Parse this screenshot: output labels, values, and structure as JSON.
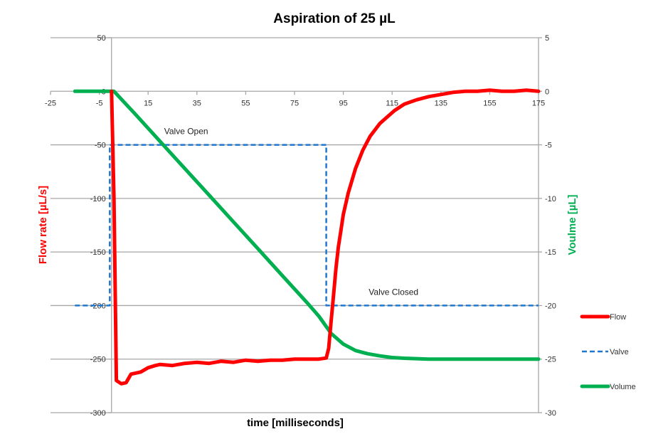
{
  "chart_data": {
    "type": "line",
    "title": "Aspiration of 25 µL",
    "xlabel": "time [milliseconds]",
    "ylabel": "Flow rate [µL/s]",
    "y2label": "Voulme [µL]",
    "xlim": [
      -25,
      175
    ],
    "ylim": [
      -300,
      50
    ],
    "y2lim": [
      -30,
      5
    ],
    "x_ticks": [
      -25,
      -5,
      15,
      35,
      55,
      75,
      95,
      115,
      135,
      155,
      175
    ],
    "y_ticks": [
      50,
      0,
      -50,
      -100,
      -150,
      -200,
      -250,
      -300
    ],
    "y2_ticks": [
      5,
      0,
      -5,
      -10,
      -15,
      -20,
      -25,
      -30
    ],
    "grid": true,
    "legend_position": "right",
    "annotations": [
      {
        "text": "Valve Open",
        "x": 30,
        "y": -40
      },
      {
        "text": "Valve Closed",
        "x": 115,
        "y": -190
      }
    ],
    "series": [
      {
        "name": "Flow",
        "axis": "left",
        "color": "#ff0000",
        "style": "solid",
        "x": [
          0,
          1,
          2,
          4,
          6,
          8,
          10,
          12,
          15,
          18,
          20,
          25,
          30,
          35,
          40,
          45,
          50,
          55,
          60,
          65,
          70,
          75,
          80,
          85,
          88,
          89,
          90,
          91,
          92,
          93,
          94,
          95,
          97,
          100,
          103,
          106,
          110,
          113,
          116,
          120,
          125,
          130,
          135,
          140,
          145,
          150,
          155,
          160,
          165,
          170,
          175
        ],
        "y": [
          0,
          -100,
          -270,
          -273,
          -272,
          -264,
          -263,
          -262,
          -258,
          -256,
          -255,
          -256,
          -254,
          -253,
          -254,
          -252,
          -253,
          -251,
          -252,
          -251,
          -251,
          -250,
          -250,
          -250,
          -249,
          -240,
          -215,
          -190,
          -165,
          -145,
          -130,
          -115,
          -95,
          -72,
          -55,
          -42,
          -30,
          -24,
          -18,
          -12,
          -8,
          -5,
          -3,
          -1,
          0,
          0,
          1,
          0,
          0,
          1,
          0
        ]
      },
      {
        "name": "Valve",
        "axis": "left",
        "color": "#1f77d0",
        "style": "dashed",
        "x": [
          -15,
          -0.7,
          -0.7,
          88,
          88,
          175
        ],
        "y": [
          -200,
          -200,
          -50,
          -50,
          -200,
          -200
        ]
      },
      {
        "name": "Volume",
        "axis": "right",
        "color": "#00b050",
        "style": "solid",
        "x": [
          -15,
          0,
          1,
          10,
          20,
          30,
          40,
          50,
          60,
          70,
          80,
          85,
          90,
          95,
          100,
          105,
          110,
          115,
          120,
          130,
          140,
          175
        ],
        "y": [
          0,
          0,
          0,
          -2.2,
          -4.7,
          -7.2,
          -9.7,
          -12.2,
          -14.7,
          -17.2,
          -19.7,
          -21,
          -22.6,
          -23.6,
          -24.2,
          -24.5,
          -24.7,
          -24.85,
          -24.92,
          -25,
          -25,
          -25
        ]
      }
    ]
  }
}
